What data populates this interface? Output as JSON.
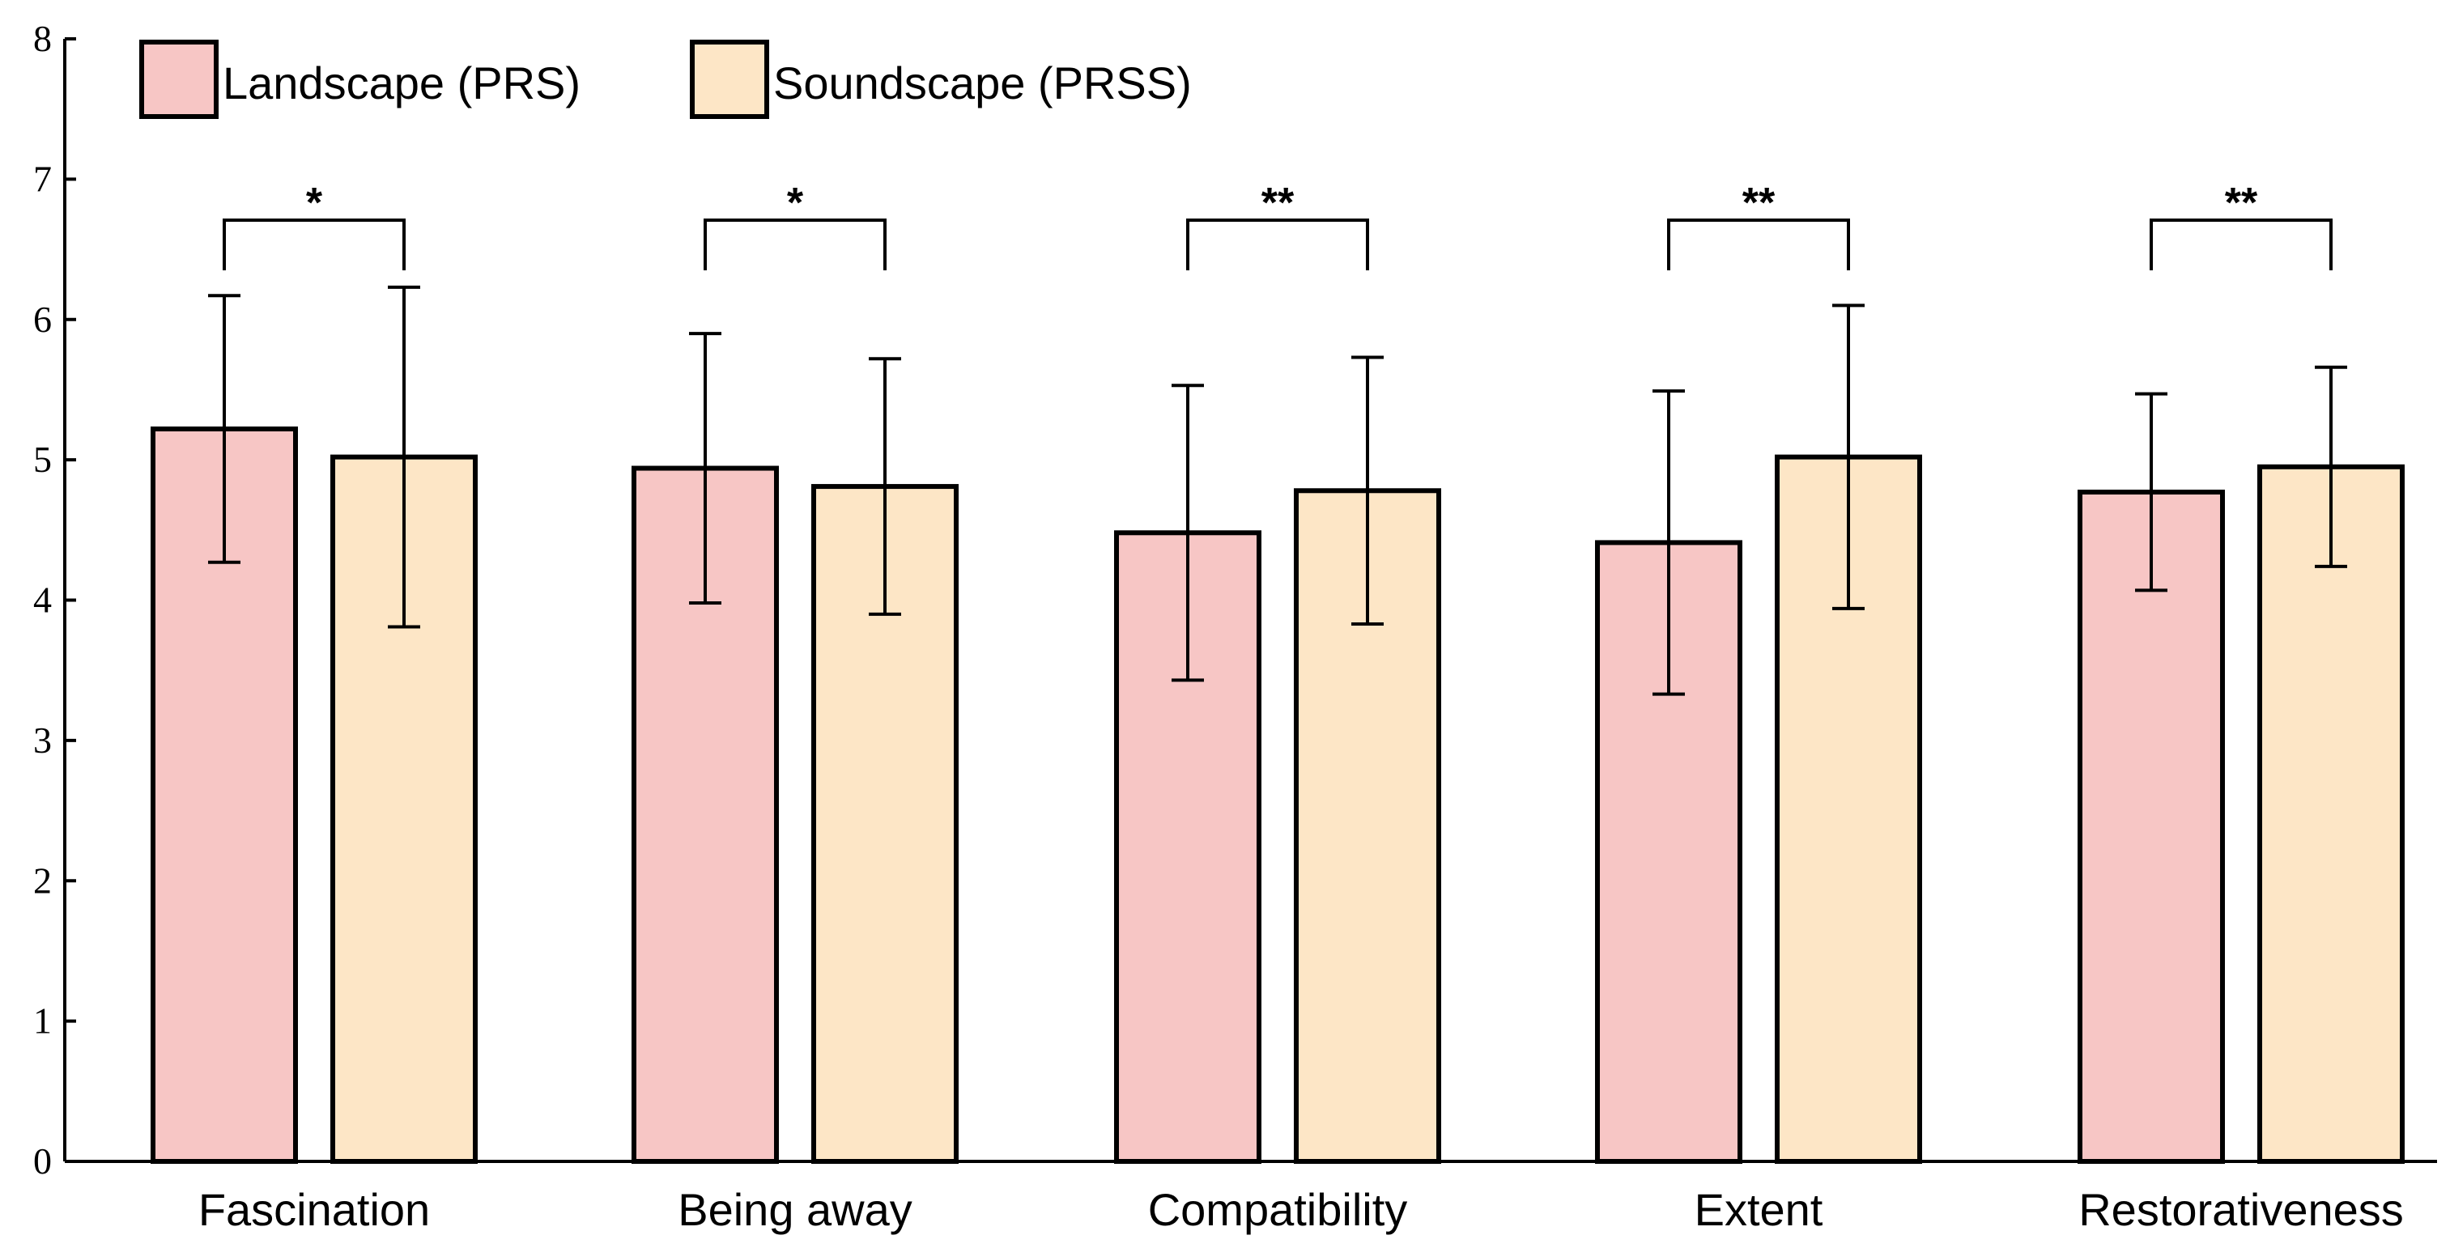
{
  "chart_data": {
    "type": "bar",
    "categories": [
      "Fascination",
      "Being away",
      "Compatibility",
      "Extent",
      "Restorativeness"
    ],
    "series": [
      {
        "name": "Landscape (PRS)",
        "color": "#f7c6c5",
        "values": [
          5.22,
          4.94,
          4.48,
          4.41,
          4.77
        ],
        "errors": [
          0.95,
          0.96,
          1.05,
          1.08,
          0.7
        ]
      },
      {
        "name": "Soundscape (PRSS)",
        "color": "#fde6c6",
        "values": [
          5.02,
          4.81,
          4.78,
          5.02,
          4.95
        ],
        "errors": [
          1.21,
          0.91,
          0.95,
          1.08,
          0.71
        ]
      }
    ],
    "significance": [
      "*",
      "*",
      "**",
      "**",
      "**"
    ],
    "ylim": [
      0,
      8
    ],
    "yticks": [
      "0",
      "1",
      "2",
      "3",
      "4",
      "5",
      "6",
      "7",
      "8"
    ],
    "xlabel": "",
    "ylabel": "",
    "title": "",
    "legend": "top-left",
    "grid": false
  }
}
